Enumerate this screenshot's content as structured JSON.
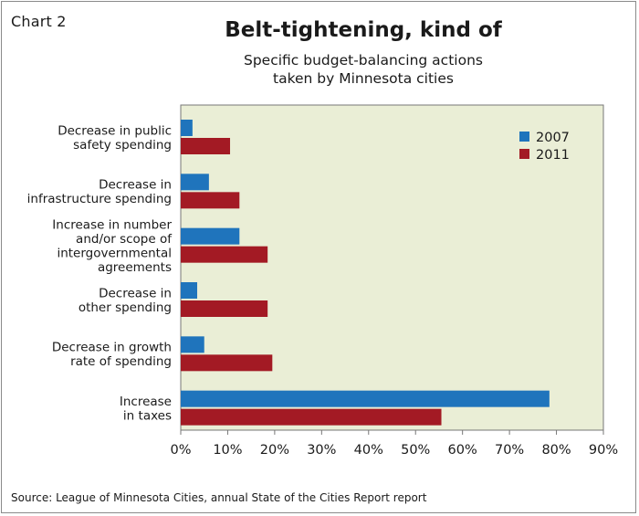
{
  "chart_label": "Chart 2",
  "title": "Belt-tightening, kind of",
  "subtitle_lines": [
    "Specific budget-balancing actions",
    "taken by Minnesota cities"
  ],
  "source": "Source: League of Minnesota Cities, annual State of the Cities Report report",
  "colors": {
    "plot_bg": "#eaeed6",
    "2007": "#1f74bc",
    "2011": "#a31a24",
    "axis": "#777777"
  },
  "chart_data": {
    "type": "bar",
    "orientation": "horizontal",
    "categories": [
      [
        "Decrease in public",
        "safety spending"
      ],
      [
        "Decrease in",
        "infrastructure spending"
      ],
      [
        "Increase in number",
        "and/or scope of",
        "intergovernmental",
        "agreements"
      ],
      [
        "Decrease in",
        "other spending"
      ],
      [
        "Decrease in growth",
        "rate of spending"
      ],
      [
        "Increase",
        "in taxes"
      ]
    ],
    "series": [
      {
        "name": "2007",
        "values": [
          2.5,
          6,
          12.5,
          3.5,
          5,
          78.5
        ]
      },
      {
        "name": "2011",
        "values": [
          10.5,
          12.5,
          18.5,
          18.5,
          19.5,
          55.5
        ]
      }
    ],
    "xlim": [
      0,
      90
    ],
    "xticks": [
      "0%",
      "10%",
      "20%",
      "30%",
      "40%",
      "50%",
      "60%",
      "70%",
      "80%",
      "90%"
    ],
    "legend": {
      "position": "top-right",
      "entries": [
        "2007",
        "2011"
      ]
    },
    "grid": false
  }
}
